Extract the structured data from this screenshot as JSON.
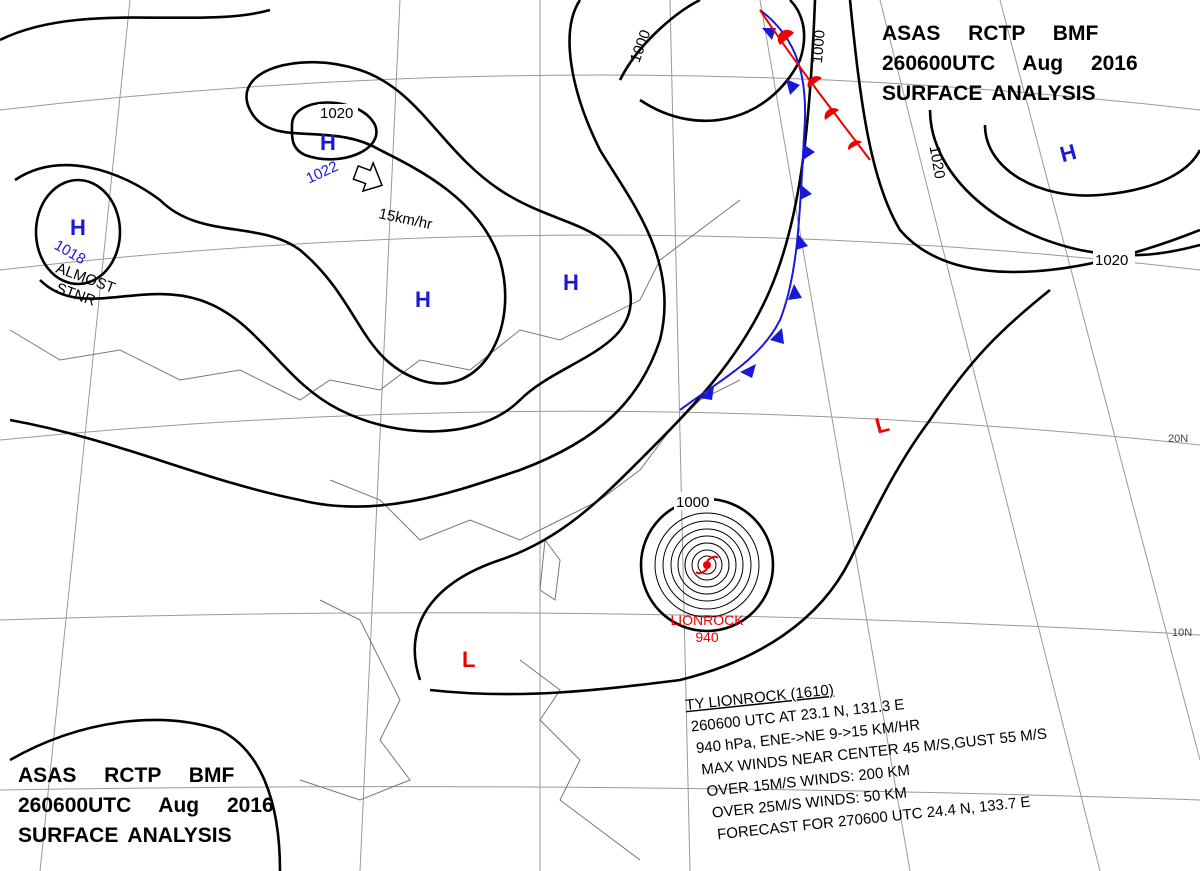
{
  "header_top": {
    "lines": [
      "ASAS RCTP BMF",
      "260600UTC Aug 2016",
      "SURFACE ANALYSIS"
    ]
  },
  "header_bottom": {
    "lines": [
      "ASAS RCTP BMF",
      "260600UTC Aug 2016",
      "SURFACE ANALYSIS"
    ]
  },
  "pressure_centers": [
    {
      "letter": "H",
      "value": "1022"
    },
    {
      "letter": "H",
      "value": "1018"
    },
    {
      "letter": "H"
    },
    {
      "letter": "H"
    },
    {
      "letter": "H"
    },
    {
      "letter": "L"
    },
    {
      "letter": "L"
    }
  ],
  "isobar_labels": [
    "1020",
    "1000",
    "1000",
    "1020",
    "1020",
    "1000"
  ],
  "motion": "15km/hr",
  "note": [
    "ALMOST",
    "STNR"
  ],
  "typhoon": {
    "name": "LIONROCK",
    "pressure": "940",
    "info": [
      "TY LIONROCK (1610)",
      "260600 UTC AT 23.1 N, 131.3 E",
      "940 hPa, ENE->NE 9->15 KM/HR",
      "MAX WINDS NEAR CENTER 45 M/S,GUST 55 M/S",
      "OVER 15M/S WINDS: 200 KM",
      "OVER 25M/S WINDS: 50 KM",
      "FORECAST FOR 270600 UTC 24.4 N, 133.7 E"
    ]
  },
  "latitude_labels": [
    "20N",
    "10N"
  ]
}
